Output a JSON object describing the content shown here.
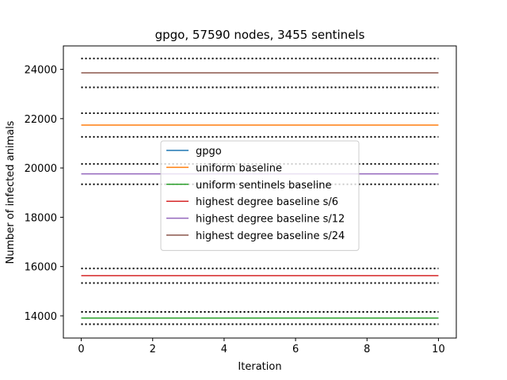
{
  "chart_data": {
    "type": "line",
    "title": "gpgo, 57590 nodes, 3455 sentinels",
    "xlabel": "Iteration",
    "ylabel": "Number of infected animals",
    "xlim": [
      -0.5,
      10.5
    ],
    "ylim": [
      13100,
      24950
    ],
    "xticks": [
      0,
      2,
      4,
      6,
      8,
      10
    ],
    "yticks": [
      14000,
      16000,
      18000,
      20000,
      22000,
      24000
    ],
    "x": [
      0,
      1,
      2,
      3,
      4,
      5,
      6,
      7,
      8,
      9,
      10
    ],
    "grid": false,
    "legend_position": "center",
    "series": [
      {
        "name": "gpgo",
        "color": "#1f77b4",
        "y": 13910,
        "band": [
          13660,
          14160
        ]
      },
      {
        "name": "uniform baseline",
        "color": "#ff7f0e",
        "y": 21740,
        "band": [
          21260,
          22220
        ]
      },
      {
        "name": "uniform sentinels baseline",
        "color": "#2ca02c",
        "y": 13910,
        "band": [
          13660,
          14160
        ]
      },
      {
        "name": "highest degree baseline s/6",
        "color": "#d62728",
        "y": 15630,
        "band": [
          15330,
          15920
        ]
      },
      {
        "name": "highest degree baseline s/12",
        "color": "#9467bd",
        "y": 19760,
        "band": [
          19340,
          20160
        ]
      },
      {
        "name": "highest degree baseline s/24",
        "color": "#8c564b",
        "y": 23860,
        "band": [
          23270,
          24440
        ]
      }
    ]
  }
}
